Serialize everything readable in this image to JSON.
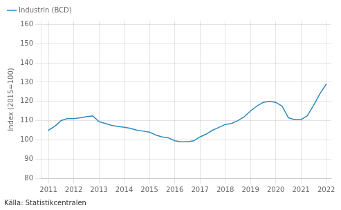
{
  "chart_data": {
    "type": "line",
    "ylabel": "Index (2015=100)",
    "annotations": [
      "Källa: Statistikcentralen"
    ],
    "x": [
      2011.0,
      2011.25,
      2011.5,
      2011.75,
      2012.0,
      2012.25,
      2012.5,
      2012.75,
      2013.0,
      2013.25,
      2013.5,
      2013.75,
      2014.0,
      2014.25,
      2014.5,
      2014.75,
      2015.0,
      2015.25,
      2015.5,
      2015.75,
      2016.0,
      2016.25,
      2016.5,
      2016.75,
      2017.0,
      2017.25,
      2017.5,
      2017.75,
      2018.0,
      2018.25,
      2018.5,
      2018.75,
      2019.0,
      2019.25,
      2019.5,
      2019.75,
      2020.0,
      2020.25,
      2020.5,
      2020.75,
      2021.0,
      2021.25,
      2021.5,
      2021.75,
      2022.0
    ],
    "series": [
      {
        "name": "Industrin (BCD)",
        "color": "#2b8abf",
        "values": [
          105.0,
          107.0,
          110.0,
          111.0,
          111.0,
          111.5,
          112.0,
          112.5,
          109.5,
          108.5,
          107.5,
          107.0,
          106.5,
          106.0,
          105.0,
          104.5,
          104.0,
          102.5,
          101.5,
          101.0,
          99.5,
          99.0,
          99.0,
          99.5,
          101.5,
          103.0,
          105.0,
          106.5,
          108.0,
          108.5,
          110.0,
          112.0,
          115.0,
          117.5,
          119.5,
          120.0,
          119.5,
          117.5,
          111.5,
          110.5,
          110.5,
          112.5,
          118.0,
          124.0,
          129.0
        ]
      }
    ],
    "xlim": [
      2010.7,
      2022.2
    ],
    "xticks": [
      2011,
      2012,
      2013,
      2014,
      2015,
      2016,
      2017,
      2018,
      2019,
      2020,
      2021,
      2022
    ],
    "ylim": [
      80,
      162
    ],
    "yticks": [
      80,
      90,
      100,
      110,
      120,
      130,
      140,
      150,
      160
    ],
    "grid": true,
    "legend": "upper left"
  }
}
